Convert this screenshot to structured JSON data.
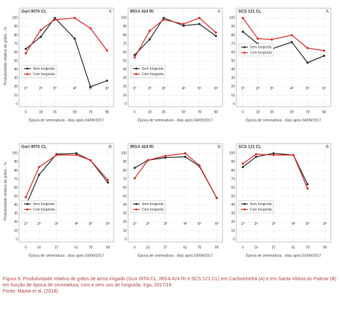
{
  "chart_data": [
    {
      "type": "line",
      "title": "Guri INTA CL",
      "panel": "A",
      "ylabel": "Produtividade relativa de grãos - %",
      "xlabel": "Época de semeadura - dias após 04/09/2017",
      "x": [
        0,
        18,
        35,
        59,
        78,
        98
      ],
      "xticks": [
        0,
        18,
        35,
        59,
        78,
        98
      ],
      "xlim": [
        -8,
        106
      ],
      "ylim": [
        0,
        105
      ],
      "yticks": [
        0,
        10,
        20,
        30,
        40,
        50,
        60,
        70,
        80,
        90,
        100
      ],
      "grid": true,
      "legend": "lower left",
      "annotations": [
        "1º",
        "2º",
        "3º",
        "4º",
        "5º",
        "6º"
      ],
      "series": [
        {
          "name": "Sem fungicida",
          "color": "#2b2b2b",
          "values": [
            64,
            78,
            100,
            76,
            20,
            27
          ]
        },
        {
          "name": "Com fungicida",
          "color": "#d42a2a",
          "values": [
            59,
            86,
            98,
            100,
            88,
            62
          ]
        }
      ]
    },
    {
      "type": "line",
      "title": "IRGA 424 RI",
      "panel": "A",
      "xlabel": "Época de semeadura - dias após 04/09/2017",
      "x": [
        0,
        18,
        35,
        59,
        78,
        98
      ],
      "xticks": [
        0,
        18,
        35,
        59,
        78,
        98
      ],
      "xlim": [
        -8,
        106
      ],
      "ylim": [
        0,
        105
      ],
      "yticks": [
        0,
        10,
        20,
        30,
        40,
        50,
        60,
        70,
        80,
        90,
        100
      ],
      "grid": true,
      "legend": "lower left",
      "annotations": [
        "1º",
        "2º",
        "3º",
        "4º",
        "5º",
        "6º"
      ],
      "series": [
        {
          "name": "Sem fungicida",
          "color": "#2b2b2b",
          "values": [
            57,
            75,
            100,
            91,
            93,
            79
          ]
        },
        {
          "name": "Com fungicida",
          "color": "#d42a2a",
          "values": [
            54,
            85,
            98,
            93,
            100,
            83
          ]
        }
      ]
    },
    {
      "type": "line",
      "title": "SCS 121 CL",
      "panel": "A",
      "xlabel": "Época de semeadura - dias após 04/09/2017",
      "x": [
        0,
        18,
        35,
        59,
        78,
        98
      ],
      "xticks": [
        0,
        18,
        35,
        59,
        78,
        98
      ],
      "xlim": [
        -8,
        106
      ],
      "ylim": [
        0,
        105
      ],
      "yticks": [
        0,
        10,
        20,
        30,
        40,
        50,
        60,
        70,
        80,
        90,
        100
      ],
      "grid": true,
      "legend": "center left",
      "annotations": [
        "1º",
        "2º",
        "3º",
        "4º",
        "5º",
        "6º"
      ],
      "series": [
        {
          "name": "Sem fungicida",
          "color": "#2b2b2b",
          "values": [
            84,
            70,
            64,
            72,
            48,
            56
          ]
        },
        {
          "name": "Com fungicida",
          "color": "#d42a2a",
          "values": [
            100,
            76,
            75,
            80,
            65,
            62
          ]
        }
      ]
    },
    {
      "type": "line",
      "title": "Guri INTA CL",
      "panel": "B",
      "ylabel": "Produtividade relativa de grãos - %",
      "xlabel": "Época de semeadura - dias após 03/09/2017",
      "x": [
        0,
        16,
        37,
        61,
        78,
        99
      ],
      "xticks": [
        0,
        16,
        37,
        61,
        78,
        99
      ],
      "xlim": [
        -8,
        106
      ],
      "ylim": [
        0,
        105
      ],
      "yticks": [
        0,
        10,
        20,
        30,
        40,
        50,
        60,
        70,
        80,
        90,
        100
      ],
      "grid": true,
      "legend": "lower left",
      "annotations": [
        "1º",
        "2º",
        "3º",
        "4º",
        "5º",
        "6º"
      ],
      "series": [
        {
          "name": "Sem fungicida",
          "color": "#2b2b2b",
          "values": [
            39,
            75,
            99,
            100,
            92,
            66
          ]
        },
        {
          "name": "Com fungicida",
          "color": "#d42a2a",
          "values": [
            49,
            84,
            98,
            98,
            92,
            69
          ]
        }
      ]
    },
    {
      "type": "line",
      "title": "IRGA 424 RI",
      "panel": "B",
      "xlabel": "Época de semeadura - dias após 03/09/2017",
      "x": [
        0,
        16,
        37,
        61,
        78,
        99
      ],
      "xticks": [
        0,
        16,
        37,
        61,
        78,
        99
      ],
      "xlim": [
        -8,
        106
      ],
      "ylim": [
        0,
        105
      ],
      "yticks": [
        0,
        10,
        20,
        30,
        40,
        50,
        60,
        70,
        80,
        90,
        100
      ],
      "grid": true,
      "legend": "lower left",
      "annotations": [
        "1º",
        "2º",
        "3º",
        "4º",
        "5º",
        "6º"
      ],
      "series": [
        {
          "name": "Sem fungicida",
          "color": "#2b2b2b",
          "values": [
            83,
            92,
            95,
            96,
            85,
            48
          ]
        },
        {
          "name": "Com fungicida",
          "color": "#d42a2a",
          "values": [
            71,
            92,
            97,
            100,
            86,
            48
          ]
        }
      ]
    },
    {
      "type": "line",
      "title": "SCS 121 CL",
      "panel": "B",
      "xlabel": "Época de semeadura - dias após 03/09/2017",
      "x": [
        0,
        16,
        37,
        61,
        78,
        99
      ],
      "xticks": [
        0,
        16,
        37,
        61,
        78,
        99
      ],
      "xlim": [
        -8,
        106
      ],
      "ylim": [
        0,
        105
      ],
      "yticks": [
        0,
        10,
        20,
        30,
        40,
        50,
        60,
        70,
        80,
        90,
        100
      ],
      "grid": true,
      "legend": "lower left",
      "annotations": [
        "1º",
        "2º",
        "3º",
        "4º",
        "5º",
        "6º"
      ],
      "series": [
        {
          "name": "Sem fungicida",
          "color": "#2b2b2b",
          "values": [
            84,
            96,
            100,
            98,
            64,
            null
          ]
        },
        {
          "name": "Com fungicida",
          "color": "#d42a2a",
          "values": [
            88,
            99,
            98,
            98,
            59,
            null
          ]
        }
      ]
    }
  ],
  "caption": "Figura 9. Produtividade relativa de grãos de arroz irrigado (Guri INTA CL, IRGA 424 RI e SCS 121 CL) em Cachoeirinha (A) e em Santa Vitória do Palmar (B) em função de época de semeadura, com e sem uso de fungicida. Irga, 2017/18.",
  "source": "Fonte: Mariot et al. (2018)."
}
